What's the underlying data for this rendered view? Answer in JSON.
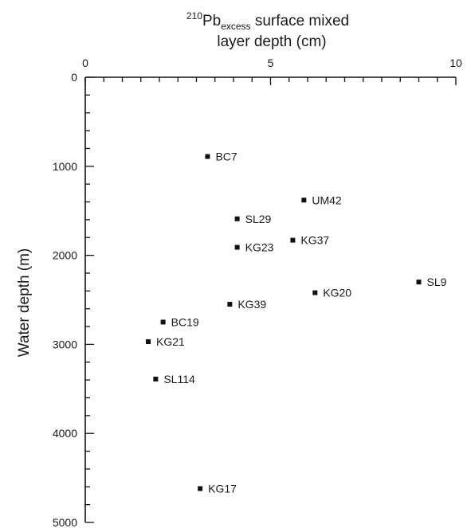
{
  "chart_data": {
    "type": "scatter",
    "title_line1_prefix": "210",
    "title_line1_main": "Pb",
    "title_line1_sub": "excess",
    "title_line1_rest": " surface mixed",
    "title_line2": "layer depth (cm)",
    "xlabel": "",
    "ylabel": "Water depth (m)",
    "xlim": [
      0,
      10
    ],
    "ylim": [
      0,
      5000
    ],
    "x_axis_position": "top",
    "y_inverted": true,
    "x_ticks": [
      "0",
      "5",
      "10"
    ],
    "y_ticks": [
      "0",
      "1000",
      "2000",
      "3000",
      "4000",
      "5000"
    ],
    "grid": false,
    "marker_color": "#111111",
    "points": [
      {
        "label": "BC7",
        "x": 3.3,
        "y": 890
      },
      {
        "label": "UM42",
        "x": 5.9,
        "y": 1380
      },
      {
        "label": "SL29",
        "x": 4.1,
        "y": 1590
      },
      {
        "label": "KG37",
        "x": 5.6,
        "y": 1830
      },
      {
        "label": "KG23",
        "x": 4.1,
        "y": 1910
      },
      {
        "label": "SL9",
        "x": 9.0,
        "y": 2300
      },
      {
        "label": "KG20",
        "x": 6.2,
        "y": 2420
      },
      {
        "label": "KG39",
        "x": 3.9,
        "y": 2550
      },
      {
        "label": "BC19",
        "x": 2.1,
        "y": 2750
      },
      {
        "label": "KG21",
        "x": 1.7,
        "y": 2970
      },
      {
        "label": "SL114",
        "x": 1.9,
        "y": 3390
      },
      {
        "label": "KG17",
        "x": 3.1,
        "y": 4620
      }
    ]
  }
}
